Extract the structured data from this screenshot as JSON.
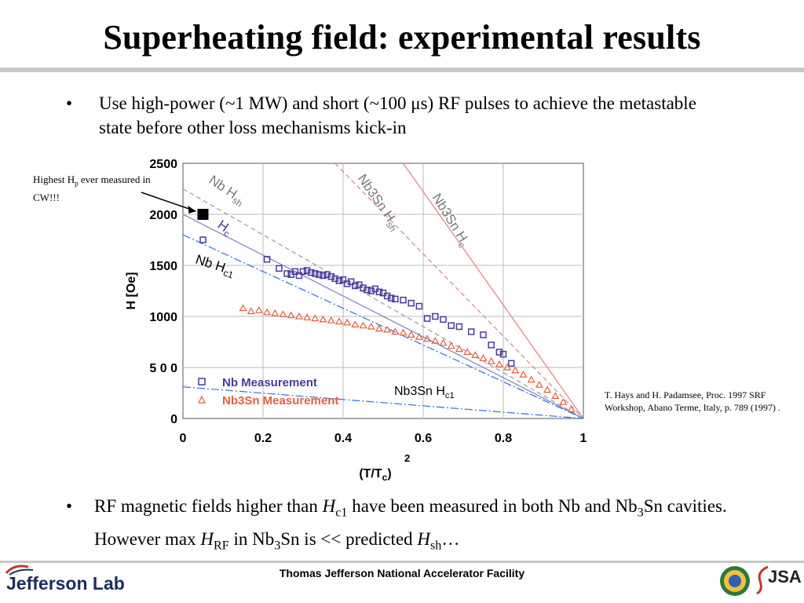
{
  "slide": {
    "title": "Superheating field: experimental results",
    "bullet_char": "•",
    "bullet1": "Use high-power (~1 MW) and short (~100 μs) RF pulses to achieve the metastable state before other loss mechanisms kick-in",
    "bullet2": {
      "seg1": "RF magnetic fields higher than ",
      "h1": "H",
      "h1_sub": "c1",
      "seg2": " have been measured in both Nb and Nb",
      "nb_sub": "3",
      "seg3": "Sn cavities. However max ",
      "h2": "H",
      "h2_sub": "RF",
      "seg4": " in Nb",
      "nb_sub2": "3",
      "seg5": "Sn is << predicted ",
      "h3": "H",
      "h3_sub": "sh",
      "seg6": "…"
    },
    "note_left": {
      "pre": "Highest H",
      "sub": "p",
      "post": " ever measured in CW!!!"
    },
    "citation": "T. Hays and H. Padamsee, Proc. 1997 SRF Workshop, Abano Terme, Italy, p. 789 (1997) .",
    "footer_center": "Thomas Jefferson National Accelerator Facility",
    "logo_left": "Jefferson Lab",
    "logo_right": "JSA"
  },
  "chart_data": {
    "type": "scatter",
    "xlabel": "(T/T",
    "xlabel_sub": "c",
    "xlabel_sup": "2",
    "ylabel": "H [Oe]",
    "xlim": [
      0,
      1
    ],
    "ylim": [
      0,
      2500
    ],
    "x_ticks": [
      "0",
      "0.2",
      "0.4",
      "0.6",
      "0.8",
      "1"
    ],
    "x_tick_values": [
      0,
      0.2,
      0.4,
      0.6,
      0.8,
      1
    ],
    "y_ticks": [
      "0",
      "5 0 0",
      "1000",
      "1500",
      "2000",
      "2500"
    ],
    "y_tick_values": [
      0,
      500,
      1000,
      1500,
      2000,
      2500
    ],
    "grid": true,
    "legend": [
      {
        "label": "Nb Measurement",
        "color": "#4a3a9a",
        "marker": "square"
      },
      {
        "label": "Nb3Sn Measurement",
        "color": "#e06040",
        "marker": "triangle"
      }
    ],
    "lines": [
      {
        "name": "Nb Hsh",
        "style": "dashed",
        "color": "#999999",
        "x": [
          0,
          1
        ],
        "y": [
          2250,
          0
        ]
      },
      {
        "name": "Nb Hc",
        "style": "solid",
        "color": "#8080c0",
        "x": [
          0,
          1
        ],
        "y": [
          2000,
          0
        ]
      },
      {
        "name": "Nb Hc1",
        "style": "dashdot",
        "color": "#3070d0",
        "x": [
          0,
          1
        ],
        "y": [
          1800,
          0
        ]
      },
      {
        "name": "Nb3Sn Hsh",
        "style": "dashed",
        "color": "#e08080",
        "x": [
          0.38,
          1
        ],
        "y": [
          2500,
          0
        ]
      },
      {
        "name": "Nb3Sn Hc",
        "style": "solid",
        "color": "#e08080",
        "x": [
          0.55,
          1
        ],
        "y": [
          2500,
          0
        ]
      },
      {
        "name": "Nb3Sn Hc1",
        "style": "dashdot",
        "color": "#3070d0",
        "x": [
          0,
          1
        ],
        "y": [
          310,
          0
        ]
      }
    ],
    "line_labels": [
      {
        "text": "Nb  H",
        "sub": "sh",
        "color": "#777777"
      },
      {
        "text": "H",
        "sub": "c",
        "color": "#4a3a9a"
      },
      {
        "text": "Nb H",
        "sub": "c1",
        "color": "#000000"
      },
      {
        "text": "Nb3Sn  H",
        "sub": "sh",
        "color": "#777777"
      },
      {
        "text": "Nb3Sn  H",
        "sub": "c",
        "color": "#777777"
      },
      {
        "text": "Nb3Sn H",
        "sub": "c1",
        "color": "#000000"
      }
    ],
    "series": [
      {
        "name": "Nb Measurement",
        "marker": "square",
        "color": "#4a3a9a",
        "x": [
          0.05,
          0.21,
          0.24,
          0.26,
          0.27,
          0.28,
          0.29,
          0.3,
          0.31,
          0.32,
          0.33,
          0.34,
          0.35,
          0.36,
          0.37,
          0.38,
          0.39,
          0.4,
          0.41,
          0.42,
          0.43,
          0.44,
          0.45,
          0.46,
          0.47,
          0.48,
          0.49,
          0.5,
          0.51,
          0.52,
          0.53,
          0.55,
          0.57,
          0.59,
          0.61,
          0.63,
          0.65,
          0.67,
          0.69,
          0.72,
          0.75,
          0.77,
          0.79,
          0.8,
          0.82
        ],
        "y": [
          1750,
          1560,
          1470,
          1420,
          1410,
          1440,
          1400,
          1440,
          1450,
          1430,
          1420,
          1410,
          1400,
          1410,
          1390,
          1370,
          1350,
          1360,
          1320,
          1340,
          1300,
          1310,
          1280,
          1260,
          1250,
          1270,
          1240,
          1230,
          1200,
          1180,
          1170,
          1160,
          1130,
          1100,
          980,
          1000,
          970,
          910,
          900,
          850,
          820,
          720,
          650,
          630,
          540
        ]
      },
      {
        "name": "Nb3Sn Measurement",
        "marker": "triangle",
        "color": "#e06040",
        "x": [
          0.15,
          0.17,
          0.19,
          0.21,
          0.23,
          0.25,
          0.27,
          0.29,
          0.31,
          0.33,
          0.35,
          0.37,
          0.39,
          0.41,
          0.43,
          0.45,
          0.47,
          0.49,
          0.51,
          0.53,
          0.55,
          0.57,
          0.59,
          0.61,
          0.63,
          0.65,
          0.67,
          0.69,
          0.71,
          0.73,
          0.75,
          0.77,
          0.79,
          0.81,
          0.83,
          0.85,
          0.87,
          0.89,
          0.91,
          0.93,
          0.95,
          0.97
        ],
        "y": [
          1080,
          1050,
          1060,
          1040,
          1030,
          1020,
          1010,
          1000,
          990,
          980,
          970,
          960,
          950,
          940,
          920,
          910,
          900,
          880,
          870,
          850,
          840,
          820,
          800,
          780,
          760,
          740,
          710,
          680,
          650,
          620,
          590,
          560,
          530,
          500,
          470,
          430,
          380,
          330,
          280,
          220,
          160,
          90
        ]
      },
      {
        "name": "Highest Hp ever measured in CW",
        "marker": "filled-square",
        "color": "#000000",
        "x": [
          0.05
        ],
        "y": [
          2000
        ]
      }
    ]
  }
}
